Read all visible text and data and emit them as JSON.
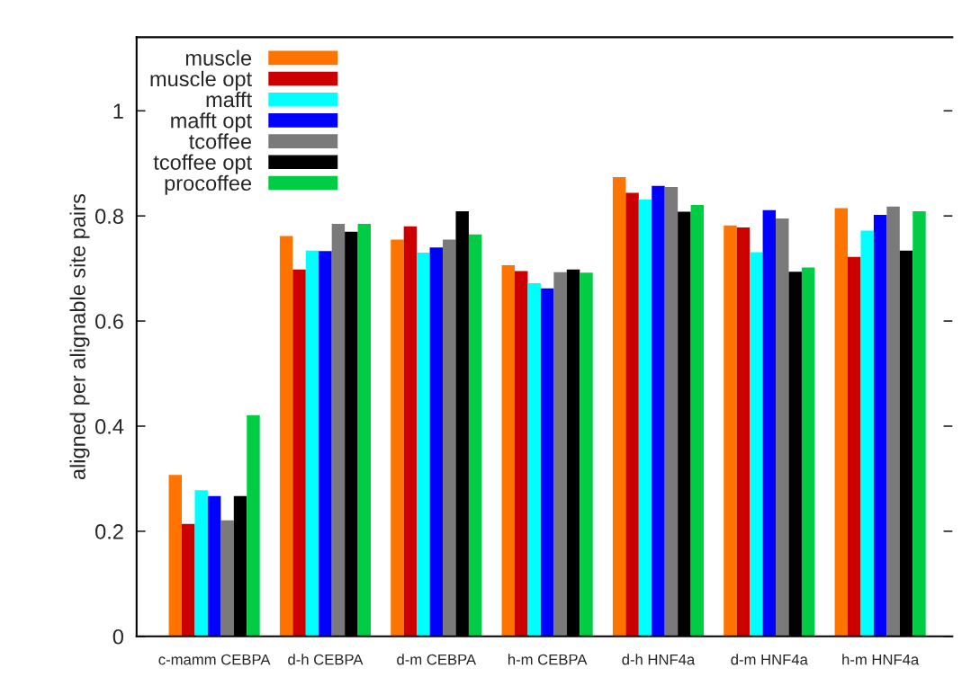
{
  "chart_data": {
    "type": "bar",
    "ylabel": "aligned per alignable site pairs",
    "categories": [
      "c-mamm CEBPA",
      "d-h CEBPA",
      "d-m CEBPA",
      "h-m CEBPA",
      "d-h HNF4a",
      "d-m HNF4a",
      "h-m HNF4a"
    ],
    "series": [
      {
        "name": "muscle",
        "color": "#ff7400",
        "values": [
          0.307,
          0.762,
          0.755,
          0.706,
          0.874,
          0.782,
          0.815
        ]
      },
      {
        "name": "muscle opt",
        "color": "#cc0000",
        "values": [
          0.214,
          0.698,
          0.78,
          0.695,
          0.844,
          0.778,
          0.722
        ]
      },
      {
        "name": "mafft",
        "color": "#00ffff",
        "values": [
          0.278,
          0.734,
          0.73,
          0.672,
          0.831,
          0.731,
          0.772
        ]
      },
      {
        "name": "mafft opt",
        "color": "#0000ff",
        "values": [
          0.267,
          0.733,
          0.74,
          0.662,
          0.857,
          0.811,
          0.802
        ]
      },
      {
        "name": "tcoffee",
        "color": "#7a7a7a",
        "values": [
          0.221,
          0.785,
          0.755,
          0.693,
          0.855,
          0.795,
          0.818
        ]
      },
      {
        "name": "tcoffee opt",
        "color": "#000000",
        "values": [
          0.267,
          0.77,
          0.809,
          0.698,
          0.808,
          0.694,
          0.734
        ]
      },
      {
        "name": "procoffee",
        "color": "#00cc44",
        "values": [
          0.421,
          0.785,
          0.765,
          0.692,
          0.821,
          0.702,
          0.809
        ]
      }
    ],
    "ylim": [
      0,
      1.14
    ],
    "yticks": [
      0,
      0.2,
      0.4,
      0.6,
      0.8,
      1
    ],
    "grid": false,
    "legend": "top left"
  }
}
